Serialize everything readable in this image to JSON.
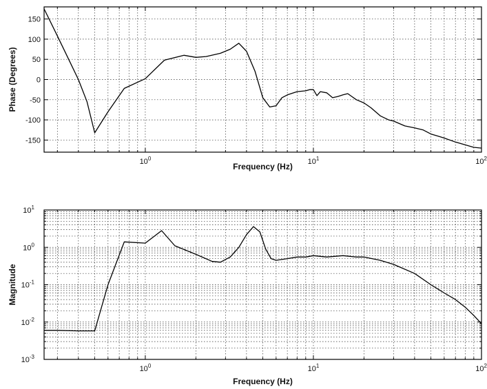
{
  "chart_data": [
    {
      "type": "line",
      "title": "",
      "xlabel": "Frequency (Hz)",
      "ylabel": "Phase (Degrees)",
      "xscale": "log",
      "yscale": "linear",
      "xlim": [
        0.25,
        100
      ],
      "ylim": [
        -180,
        180
      ],
      "grid": true,
      "x_ticks": [
        {
          "value": 1,
          "base": "10",
          "exp": "0"
        },
        {
          "value": 10,
          "base": "10",
          "exp": "1"
        },
        {
          "value": 100,
          "base": "10",
          "exp": "2"
        }
      ],
      "y_ticks": [
        {
          "value": 150,
          "label": "150"
        },
        {
          "value": 100,
          "label": "100"
        },
        {
          "value": 50,
          "label": "50"
        },
        {
          "value": 0,
          "label": "0"
        },
        {
          "value": -50,
          "label": "-50"
        },
        {
          "value": -100,
          "label": "-100"
        },
        {
          "value": -150,
          "label": "-150"
        }
      ],
      "series": [
        {
          "x": [
            0.25,
            0.3,
            0.35,
            0.4,
            0.45,
            0.5,
            0.6,
            0.75,
            1.0,
            1.3,
            1.7,
            2.0,
            2.3,
            2.8,
            3.2,
            3.6,
            4.0,
            4.5,
            5.0,
            5.5,
            6.0,
            6.5,
            7.0,
            8.0,
            9.0,
            9.5,
            10.0,
            10.5,
            11,
            12,
            13,
            14,
            15,
            16,
            18,
            20,
            22,
            25,
            28,
            30,
            35,
            40,
            45,
            50,
            55,
            60,
            70,
            80,
            90,
            100
          ],
          "y": [
            175,
            108,
            50,
            0,
            -55,
            -132,
            -80,
            -22,
            2,
            48,
            60,
            55,
            57,
            65,
            75,
            90,
            70,
            20,
            -45,
            -68,
            -65,
            -45,
            -38,
            -30,
            -28,
            -25,
            -25,
            -40,
            -30,
            -33,
            -45,
            -42,
            -38,
            -35,
            -50,
            -58,
            -70,
            -90,
            -100,
            -103,
            -115,
            -120,
            -125,
            -135,
            -140,
            -145,
            -155,
            -162,
            -168,
            -170
          ]
        }
      ]
    },
    {
      "type": "line",
      "title": "",
      "xlabel": "Frequency (Hz)",
      "ylabel": "Magnitude",
      "xscale": "log",
      "yscale": "log",
      "xlim": [
        0.25,
        100
      ],
      "ylim": [
        0.001,
        10
      ],
      "grid": true,
      "x_ticks": [
        {
          "value": 1,
          "base": "10",
          "exp": "0"
        },
        {
          "value": 10,
          "base": "10",
          "exp": "1"
        },
        {
          "value": 100,
          "base": "10",
          "exp": "2"
        }
      ],
      "y_ticks": [
        {
          "value": 10,
          "base": "10",
          "exp": "1"
        },
        {
          "value": 1,
          "base": "10",
          "exp": "0"
        },
        {
          "value": 0.1,
          "base": "10",
          "exp": "-1"
        },
        {
          "value": 0.01,
          "base": "10",
          "exp": "-2"
        },
        {
          "value": 0.001,
          "base": "10",
          "exp": "-3"
        }
      ],
      "series": [
        {
          "x": [
            0.25,
            0.3,
            0.4,
            0.5,
            0.6,
            0.75,
            1.0,
            1.25,
            1.5,
            2.0,
            2.5,
            2.8,
            3.2,
            3.6,
            4.0,
            4.4,
            4.8,
            5.2,
            5.6,
            6.0,
            7.0,
            8.0,
            9.0,
            10,
            12,
            15,
            18,
            20,
            25,
            30,
            40,
            50,
            60,
            70,
            80,
            90,
            100
          ],
          "y": [
            0.006,
            0.006,
            0.0058,
            0.0058,
            0.1,
            1.4,
            1.3,
            2.8,
            1.1,
            0.65,
            0.42,
            0.4,
            0.55,
            1.0,
            2.2,
            3.6,
            2.6,
            0.9,
            0.5,
            0.45,
            0.5,
            0.55,
            0.55,
            0.6,
            0.55,
            0.6,
            0.55,
            0.55,
            0.45,
            0.35,
            0.2,
            0.1,
            0.06,
            0.04,
            0.025,
            0.015,
            0.009
          ]
        }
      ]
    }
  ]
}
